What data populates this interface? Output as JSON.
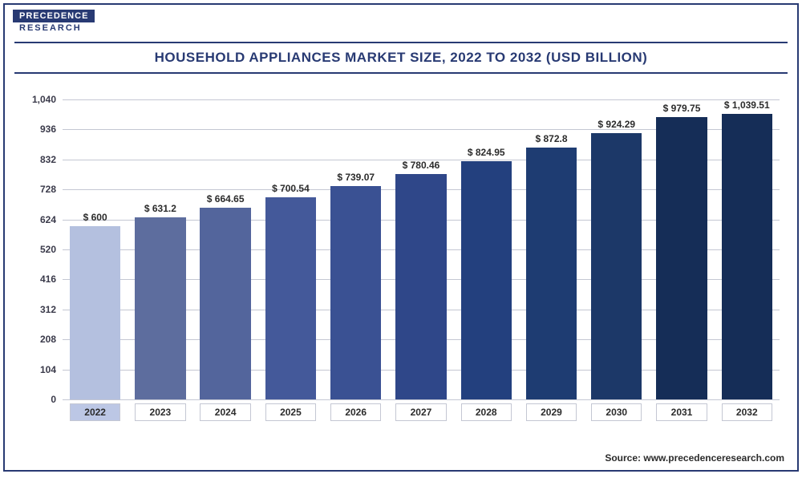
{
  "logo": {
    "top": "PRECEDENCE",
    "bottom": "RESEARCH"
  },
  "title": "HOUSEHOLD APPLIANCES MARKET SIZE, 2022 TO 2032 (USD BILLION)",
  "source": "Source: www.precedenceresearch.com",
  "chart": {
    "type": "bar",
    "ylim": [
      0,
      1040
    ],
    "ytick_step": 104,
    "yticks": [
      0,
      104,
      208,
      312,
      416,
      520,
      624,
      728,
      832,
      936,
      1040
    ],
    "ytick_labels": [
      "0",
      "104",
      "208",
      "312",
      "416",
      "520",
      "624",
      "728",
      "832",
      "936",
      "1,040"
    ],
    "grid_color": "#c4c7d3",
    "background_color": "#ffffff",
    "value_prefix": "$ ",
    "label_fontsize": 12,
    "title_fontsize": 17,
    "bar_width": 0.78,
    "highlight_index": 0,
    "categories": [
      "2022",
      "2023",
      "2024",
      "2025",
      "2026",
      "2027",
      "2028",
      "2029",
      "2030",
      "2031",
      "2032"
    ],
    "values": [
      600,
      631.2,
      664.65,
      700.54,
      739.07,
      780.46,
      824.95,
      872.8,
      924.29,
      979.75,
      1039.51
    ],
    "value_labels": [
      "$ 600",
      "$ 631.2",
      "$ 664.65",
      "$ 700.54",
      "$ 739.07",
      "$ 780.46",
      "$ 824.95",
      "$ 872.8",
      "$ 924.29",
      "$ 979.75",
      "$ 1,039.51"
    ],
    "bar_colors": [
      "#b4c0df",
      "#5d6d9e",
      "#53659c",
      "#44599a",
      "#3a5193",
      "#2f4789",
      "#23407e",
      "#1e3c72",
      "#1c3868",
      "#152d57",
      "#152d57"
    ]
  }
}
